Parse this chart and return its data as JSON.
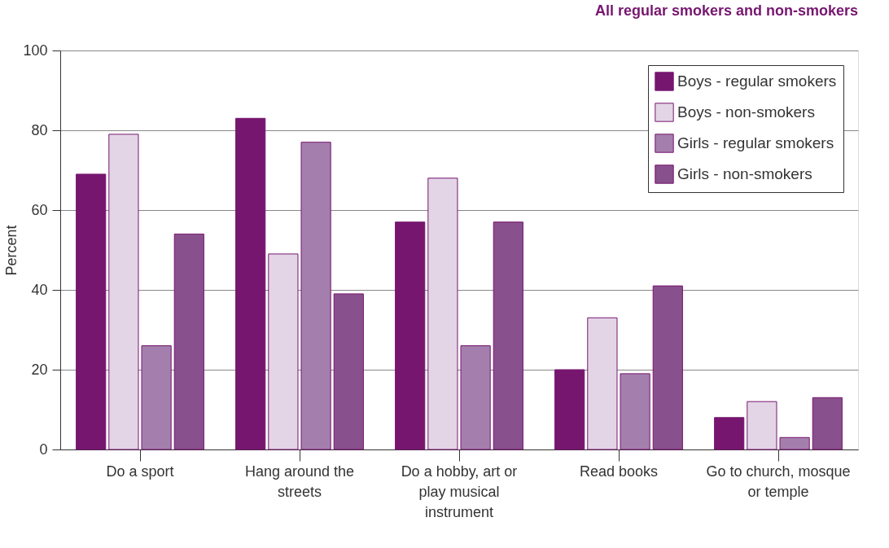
{
  "chart_data": {
    "type": "bar",
    "title": "All regular smokers and non-smokers",
    "ylabel": "Percent",
    "categories": [
      "Do a sport",
      "Hang around the streets",
      "Do a hobby, art or play musical instrument",
      "Read books",
      "Go to church, mosque or temple"
    ],
    "series": [
      {
        "name": "Boys - regular smokers",
        "color": "#76166f",
        "values": [
          69,
          83,
          57,
          20,
          8
        ]
      },
      {
        "name": "Boys - non-smokers",
        "color": "#e3d5e6",
        "values": [
          79,
          49,
          68,
          33,
          12
        ]
      },
      {
        "name": "Girls - regular smokers",
        "color": "#a47fad",
        "values": [
          26,
          77,
          26,
          19,
          3
        ]
      },
      {
        "name": "Girls - non-smokers",
        "color": "#88508c",
        "values": [
          54,
          39,
          57,
          41,
          13
        ]
      }
    ],
    "ylim": [
      0,
      100
    ],
    "yticks": [
      0,
      20,
      40,
      60,
      80,
      100
    ],
    "grid": "y",
    "legend": "top right"
  }
}
